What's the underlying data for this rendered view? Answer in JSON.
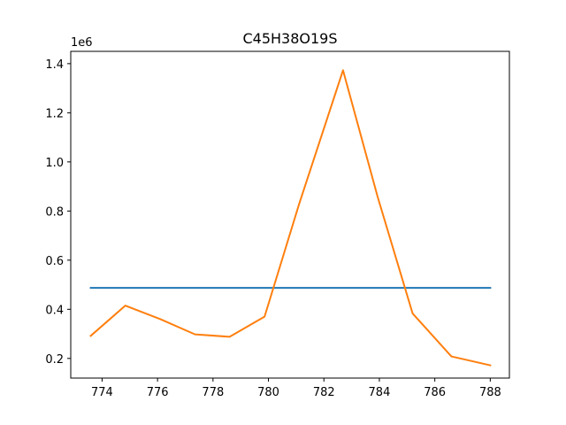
{
  "chart_data": {
    "type": "line",
    "title": "C45H38O19S",
    "xlabel": "",
    "ylabel": "",
    "y_offset_label": "1e6",
    "xlim": [
      772.87,
      788.69
    ],
    "ylim": [
      120000,
      1450000
    ],
    "x_ticks": [
      774,
      776,
      778,
      780,
      782,
      784,
      786,
      788
    ],
    "x_tick_labels": [
      "774",
      "776",
      "778",
      "780",
      "782",
      "784",
      "786",
      "788"
    ],
    "y_ticks": [
      200000,
      400000,
      600000,
      800000,
      1000000,
      1200000,
      1400000
    ],
    "y_tick_labels": [
      "0.2",
      "0.4",
      "0.6",
      "0.8",
      "1.0",
      "1.2",
      "1.4"
    ],
    "grid": false,
    "series": [
      {
        "color": "#1f77b4",
        "x": [
          773.59,
          788.0
        ],
        "y": [
          487000,
          487000
        ]
      },
      {
        "color": "#ff7f0e",
        "x": [
          773.59,
          774.84,
          776.1,
          777.35,
          778.6,
          779.86,
          781.11,
          782.69,
          783.94,
          785.2,
          786.6,
          788.0
        ],
        "y": [
          292000,
          415000,
          360000,
          298000,
          288000,
          370000,
          830000,
          1373000,
          857000,
          383000,
          208000,
          172000
        ]
      }
    ]
  }
}
